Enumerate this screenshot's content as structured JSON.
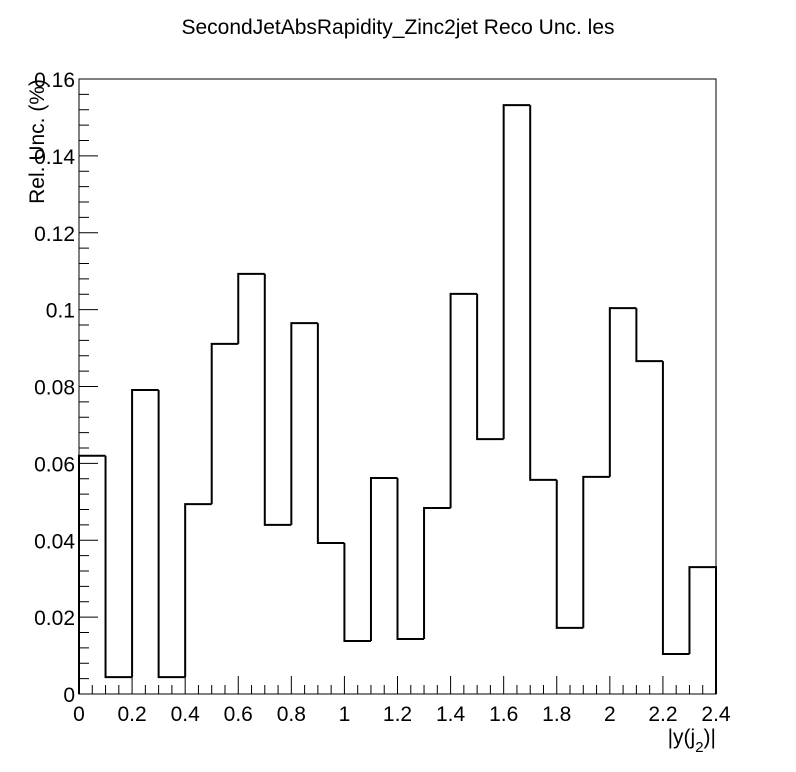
{
  "chart_data": {
    "type": "histogram",
    "title": "SecondJetAbsRapidity_Zinc2jet Reco Unc. les",
    "x_label": [
      "|y(j",
      "2",
      ")|"
    ],
    "y_label": "Rel. Unc. (%)",
    "bins": [
      0,
      0.1,
      0.2,
      0.3,
      0.4,
      0.5,
      0.6,
      0.7,
      0.8,
      0.9,
      1,
      1.1,
      1.2,
      1.3,
      1.4,
      1.5,
      1.6,
      1.7,
      1.8,
      1.9,
      2,
      2.1,
      2.2,
      2.3,
      2.4
    ],
    "values": [
      0.062,
      0.0044,
      0.0791,
      0.0044,
      0.0494,
      0.0911,
      0.1093,
      0.044,
      0.0965,
      0.0393,
      0.0138,
      0.0562,
      0.0143,
      0.0484,
      0.1041,
      0.0663,
      0.1532,
      0.0557,
      0.0172,
      0.0565,
      0.1004,
      0.0866,
      0.0104,
      0.033
    ],
    "color": "#000000",
    "xlim": [
      0,
      2.4
    ],
    "xticks": [
      0,
      0.2,
      0.4,
      0.6,
      0.8,
      1,
      1.2,
      1.4,
      1.6,
      1.8,
      2,
      2.2,
      2.4
    ],
    "ylim": [
      0,
      0.16
    ],
    "yticks": [
      0,
      0.02,
      0.04,
      0.06,
      0.08,
      0.1,
      0.12,
      0.14,
      0.16
    ]
  }
}
